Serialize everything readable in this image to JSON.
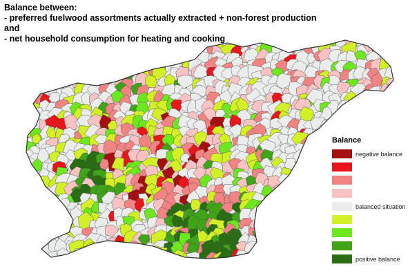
{
  "title": {
    "line1": "Balance between:",
    "line2": "-  preferred fuelwood assortments actually extracted + non-forest production",
    "line3": "and",
    "line4": "-  net household consumption for heating and cooking"
  },
  "legend": {
    "title": "Balance",
    "items": [
      {
        "label": "negative balance",
        "color": "#a50f0f"
      },
      {
        "label": "",
        "color": "#e8161a"
      },
      {
        "label": "",
        "color": "#f28383"
      },
      {
        "label": "",
        "color": "#f9c3c3"
      },
      {
        "label": "balanced situation",
        "color": "#ebecec"
      },
      {
        "label": "",
        "color": "#d2f025"
      },
      {
        "label": "",
        "color": "#6ee81e"
      },
      {
        "label": "",
        "color": "#3fa418"
      },
      {
        "label": "positive balance",
        "color": "#2a6e14"
      }
    ]
  },
  "map": {
    "base_color": "#e5e6e6",
    "border_color": "#4a4a4a"
  }
}
